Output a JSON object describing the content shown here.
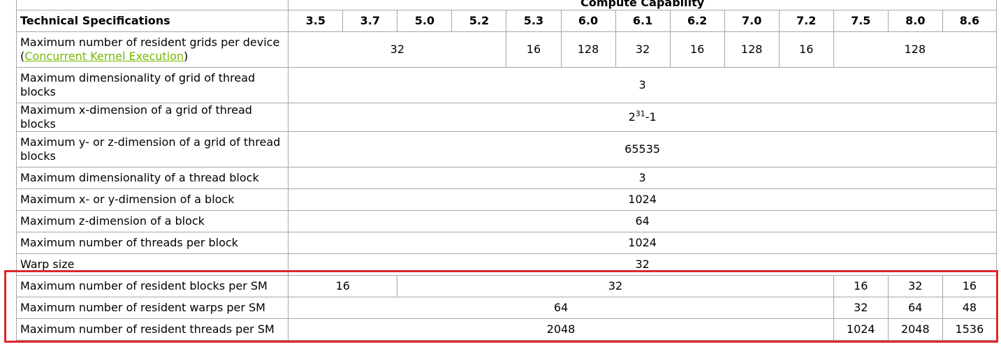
{
  "header": {
    "group_title": "Compute Capability",
    "spec_title": "Technical Specifications",
    "versions": [
      "3.5",
      "3.7",
      "5.0",
      "5.2",
      "5.3",
      "6.0",
      "6.1",
      "6.2",
      "7.0",
      "7.2",
      "7.5",
      "8.0",
      "8.6"
    ]
  },
  "rows": {
    "grids": {
      "label": "Maximum number of resident grids per device",
      "paren_open": "(",
      "link": "Concurrent Kernel Execution",
      "paren_close": ")",
      "v1": "32",
      "v2": "16",
      "v3": "128",
      "v4": "32",
      "v5": "16",
      "v6": "128",
      "v7": "16",
      "v8": "128"
    },
    "grid_dim": {
      "label": "Maximum dimensionality of grid of thread blocks",
      "value": "3"
    },
    "grid_x": {
      "label": "Maximum x-dimension of a grid of thread blocks",
      "base": "2",
      "exp": "31",
      "suffix": "-1"
    },
    "grid_yz": {
      "label": "Maximum y- or z-dimension of a grid of thread blocks",
      "value": "65535"
    },
    "block_dim": {
      "label": "Maximum dimensionality of a thread block",
      "value": "3"
    },
    "block_xy": {
      "label": "Maximum x- or y-dimension of a block",
      "value": "1024"
    },
    "block_z": {
      "label": "Maximum z-dimension of a block",
      "value": "64"
    },
    "threads_block": {
      "label": "Maximum number of threads per block",
      "value": "1024"
    },
    "warp": {
      "label": "Warp size",
      "value": "32"
    },
    "blocks_sm": {
      "label": "Maximum number of resident blocks per SM",
      "v1": "16",
      "v2": "32",
      "v3": "16",
      "v4": "32",
      "v5": "16"
    },
    "warps_sm": {
      "label": "Maximum number of resident warps per SM",
      "v1": "64",
      "v2": "32",
      "v3": "64",
      "v4": "48"
    },
    "threads_sm": {
      "label": "Maximum number of resident threads per SM",
      "v1": "2048",
      "v2": "1024",
      "v3": "2048",
      "v4": "1536"
    }
  },
  "colors": {
    "link": "#76b900",
    "highlight": "#e0262d",
    "border": "#a6a6a6"
  }
}
